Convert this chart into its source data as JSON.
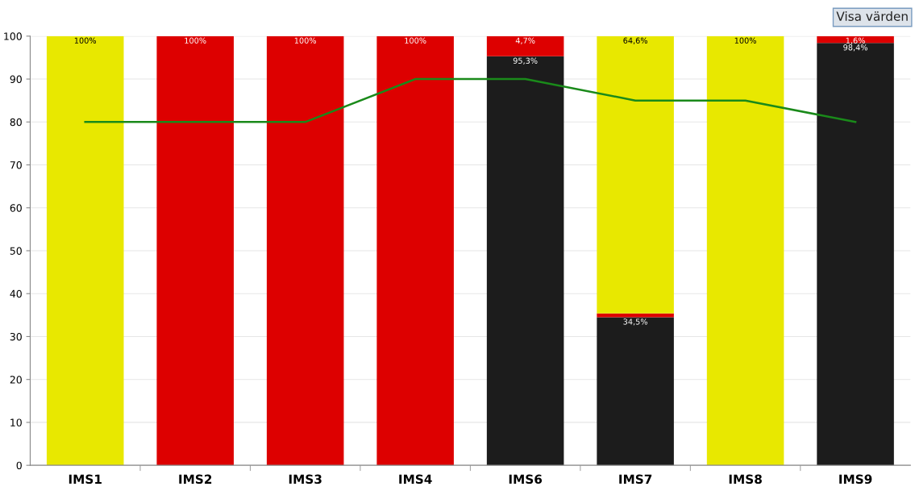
{
  "chart_data": {
    "type": "bar",
    "stacked": true,
    "categories": [
      "IMS1",
      "IMS2",
      "IMS3",
      "IMS4",
      "IMS6",
      "IMS7",
      "IMS8",
      "IMS9"
    ],
    "series": [
      {
        "color": "#1c1c1c",
        "values": [
          null,
          null,
          null,
          null,
          95.3,
          34.5,
          null,
          98.4
        ],
        "value_labels": [
          null,
          null,
          null,
          null,
          "95,3%",
          "34,5%",
          null,
          "98,4%"
        ]
      },
      {
        "color": "#dd0000",
        "values": [
          null,
          100,
          100,
          100,
          4.7,
          0.9,
          null,
          1.6
        ],
        "value_labels": [
          null,
          "100%",
          "100%",
          "100%",
          "4,7%",
          null,
          null,
          "1,6%"
        ]
      },
      {
        "color": "#e8e800",
        "values": [
          100,
          null,
          null,
          null,
          null,
          64.6,
          100,
          null
        ],
        "value_labels": [
          "100%",
          null,
          null,
          null,
          null,
          "64,6%",
          "100%",
          null
        ]
      },
      {
        "type": "line",
        "color": "#1a8a1a",
        "values": [
          80,
          80,
          80,
          90,
          90,
          85,
          85,
          80
        ]
      }
    ],
    "ylim": [
      0,
      100
    ],
    "yticks": [
      0,
      10,
      20,
      30,
      40,
      50,
      60,
      70,
      80,
      90,
      100
    ],
    "grid": "y",
    "annotations": [
      "Visa värden"
    ]
  }
}
